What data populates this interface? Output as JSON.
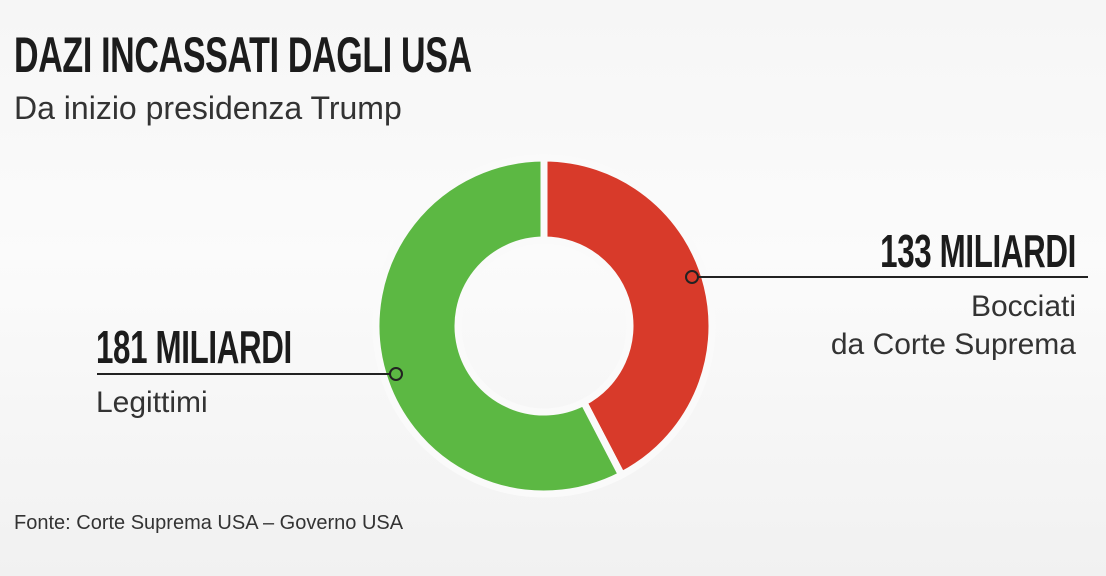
{
  "chart_data": {
    "type": "pie",
    "donut": true,
    "title": "DAZI INCASSATI DAGLI USA",
    "subtitle": "Da inizio presidenza Trump",
    "source": "Fonte: Corte Suprema USA – Governo USA",
    "categories": [
      "Bocciati\nda Corte Suprema",
      "Legittimi"
    ],
    "values": [
      133,
      181
    ],
    "value_labels": [
      "133 MILIARDI",
      "181 MILIARDI"
    ],
    "colors": [
      "#d83a2a",
      "#5cb843"
    ]
  }
}
